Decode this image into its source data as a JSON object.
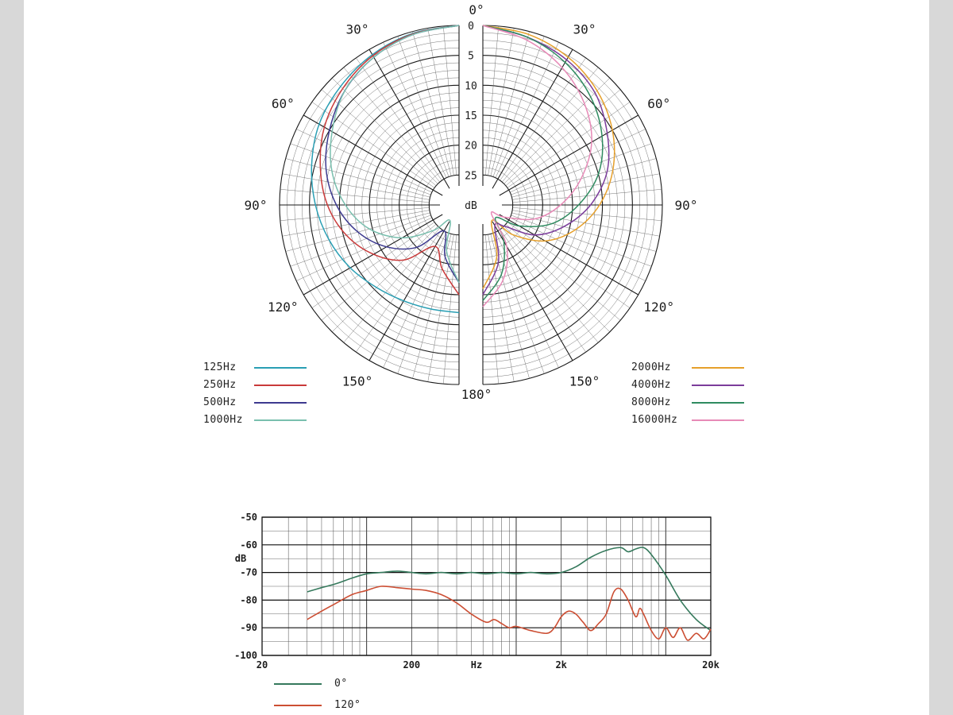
{
  "page": {
    "background": "#ffffff",
    "edge_color": "#d8d8d8"
  },
  "chart_data": [
    {
      "type": "polar",
      "name": "polar-pattern",
      "unit_label": "dB",
      "radial_ticks": [
        0,
        5,
        10,
        15,
        20,
        25
      ],
      "radial_max_db": 30,
      "angle_label_top": "0°",
      "angle_label_bottom": "180°",
      "side_angle_labels": [
        "30°",
        "60°",
        "90°",
        "120°",
        "150°"
      ],
      "angles_deg": [
        0,
        15,
        30,
        45,
        60,
        75,
        90,
        105,
        120,
        135,
        150,
        165,
        180
      ],
      "grid": {
        "circle_step_db": 1.25,
        "major_circle_step_db": 5,
        "spoke_step_deg": 5,
        "major_spoke_step_deg": 30
      },
      "series": [
        {
          "name": "125Hz",
          "color": "#2a9fb4",
          "side": "left",
          "attenuation_db": [
            0,
            0.3,
            1,
            2,
            3,
            4.5,
            6,
            7.5,
            9,
            10.5,
            11.5,
            12,
            12
          ]
        },
        {
          "name": "250Hz",
          "color": "#c93a3a",
          "side": "left",
          "attenuation_db": [
            0,
            0.4,
            1.2,
            2.5,
            4,
            6,
            8,
            10.5,
            13.5,
            17,
            22,
            19,
            15
          ]
        },
        {
          "name": "500Hz",
          "color": "#3d3a8f",
          "side": "left",
          "attenuation_db": [
            0,
            0.5,
            1.5,
            3,
            5,
            7,
            9.5,
            12.5,
            16,
            20,
            25,
            21,
            17
          ]
        },
        {
          "name": "1000Hz",
          "color": "#79bfae",
          "side": "left",
          "attenuation_db": [
            0,
            0.5,
            1.5,
            3,
            5.5,
            8,
            11,
            14.5,
            19,
            24,
            27,
            22,
            17
          ]
        },
        {
          "name": "2000Hz",
          "color": "#e6a02b",
          "side": "right",
          "attenuation_db": [
            0,
            0.5,
            1.5,
            3,
            5,
            7.5,
            10.5,
            14,
            18,
            23,
            27,
            21,
            16
          ]
        },
        {
          "name": "4000Hz",
          "color": "#7b3d9b",
          "side": "right",
          "attenuation_db": [
            0,
            1,
            2,
            3.5,
            6,
            8.5,
            12,
            16,
            20,
            25,
            26,
            20,
            15
          ]
        },
        {
          "name": "8000Hz",
          "color": "#2f8b60",
          "side": "right",
          "attenuation_db": [
            0,
            1,
            2.5,
            4.5,
            7,
            10,
            14,
            18,
            23,
            27,
            23,
            18,
            14
          ]
        },
        {
          "name": "16000Hz",
          "color": "#e78ab7",
          "side": "right",
          "attenuation_db": [
            0,
            1.5,
            3.5,
            6,
            9,
            13,
            17,
            21,
            26,
            28,
            22,
            17,
            13
          ]
        }
      ]
    },
    {
      "type": "line",
      "name": "frequency-response",
      "x_scale": "log",
      "xlim": [
        20,
        20000
      ],
      "ylim": [
        -100,
        -50
      ],
      "x_ticks": [
        {
          "value": 20,
          "label": "20"
        },
        {
          "value": 200,
          "label": "200"
        },
        {
          "value": 2000,
          "label": "2k"
        },
        {
          "value": 20000,
          "label": "20k"
        }
      ],
      "x_unit_label": "Hz",
      "y_ticks": [
        -50,
        -60,
        -70,
        -80,
        -90,
        -100
      ],
      "y_unit_label": "dB",
      "series": [
        {
          "name": "0°",
          "color": "#35795c",
          "points": [
            [
              40,
              -77
            ],
            [
              50,
              -75.5
            ],
            [
              63,
              -74
            ],
            [
              80,
              -72
            ],
            [
              100,
              -70.5
            ],
            [
              125,
              -70
            ],
            [
              160,
              -69.5
            ],
            [
              200,
              -70
            ],
            [
              250,
              -70.5
            ],
            [
              315,
              -70
            ],
            [
              400,
              -70.5
            ],
            [
              500,
              -70
            ],
            [
              630,
              -70.5
            ],
            [
              800,
              -70
            ],
            [
              1000,
              -70.5
            ],
            [
              1250,
              -70
            ],
            [
              1600,
              -70.5
            ],
            [
              2000,
              -70
            ],
            [
              2500,
              -68
            ],
            [
              3150,
              -64.5
            ],
            [
              4000,
              -62
            ],
            [
              5000,
              -61
            ],
            [
              5600,
              -62.5
            ],
            [
              6300,
              -61.5
            ],
            [
              7100,
              -61
            ],
            [
              8000,
              -63.5
            ],
            [
              10000,
              -71
            ],
            [
              12500,
              -80
            ],
            [
              16000,
              -87
            ],
            [
              20000,
              -91
            ]
          ]
        },
        {
          "name": "120°",
          "color": "#cc4e33",
          "points": [
            [
              40,
              -87
            ],
            [
              50,
              -84
            ],
            [
              63,
              -81
            ],
            [
              80,
              -78
            ],
            [
              100,
              -76.5
            ],
            [
              125,
              -75
            ],
            [
              160,
              -75.5
            ],
            [
              200,
              -76
            ],
            [
              250,
              -76.5
            ],
            [
              315,
              -78
            ],
            [
              400,
              -81
            ],
            [
              500,
              -85
            ],
            [
              630,
              -88
            ],
            [
              710,
              -87
            ],
            [
              800,
              -88.5
            ],
            [
              900,
              -90
            ],
            [
              1000,
              -89.5
            ],
            [
              1250,
              -91
            ],
            [
              1600,
              -92
            ],
            [
              1800,
              -90
            ],
            [
              2000,
              -86
            ],
            [
              2240,
              -84
            ],
            [
              2500,
              -85
            ],
            [
              2800,
              -88
            ],
            [
              3150,
              -91
            ],
            [
              3550,
              -88.5
            ],
            [
              4000,
              -85
            ],
            [
              4500,
              -77
            ],
            [
              5000,
              -76
            ],
            [
              5600,
              -80
            ],
            [
              6300,
              -86
            ],
            [
              6700,
              -83
            ],
            [
              7100,
              -85
            ],
            [
              8000,
              -91
            ],
            [
              9000,
              -94
            ],
            [
              10000,
              -90
            ],
            [
              11200,
              -93.5
            ],
            [
              12500,
              -90
            ],
            [
              14000,
              -94.5
            ],
            [
              16000,
              -92
            ],
            [
              18000,
              -94
            ],
            [
              20000,
              -90.5
            ]
          ]
        }
      ]
    }
  ]
}
